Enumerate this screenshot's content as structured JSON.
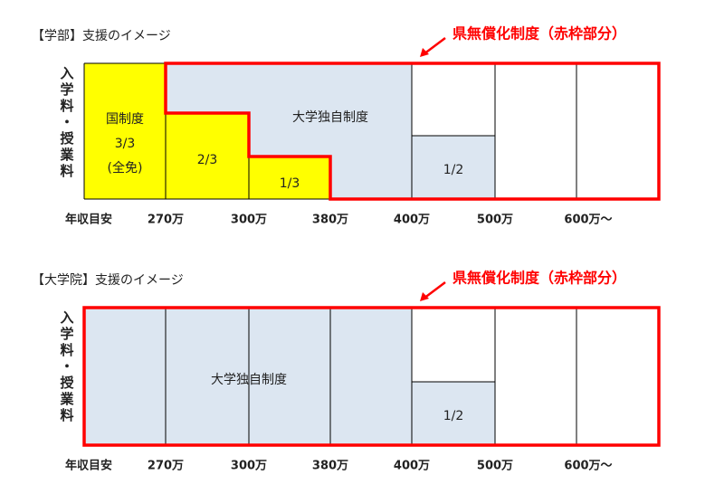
{
  "sections": [
    {
      "title": "【学部】支援のイメージ",
      "annotation": "県無償化制度（赤枠部分）",
      "axis_label": "入学料・授業料",
      "income_label": "年収目安",
      "income_levels": [
        "270万",
        "300万",
        "380万",
        "400万",
        "500万",
        "600万～"
      ],
      "regions": {
        "national": [
          "国制度",
          "3/3",
          "(全免)"
        ],
        "two_thirds": "2/3",
        "one_third": "1/3",
        "university": "大学独自制度",
        "half": "1/2"
      }
    },
    {
      "title": "【大学院】支援のイメージ",
      "annotation": "県無償化制度（赤枠部分）",
      "axis_label": "入学料・授業料",
      "income_label": "年収目安",
      "income_levels": [
        "270万",
        "300万",
        "380万",
        "400万",
        "500万",
        "600万～"
      ],
      "regions": {
        "university": "大学独自制度",
        "half": "1/2"
      }
    }
  ]
}
